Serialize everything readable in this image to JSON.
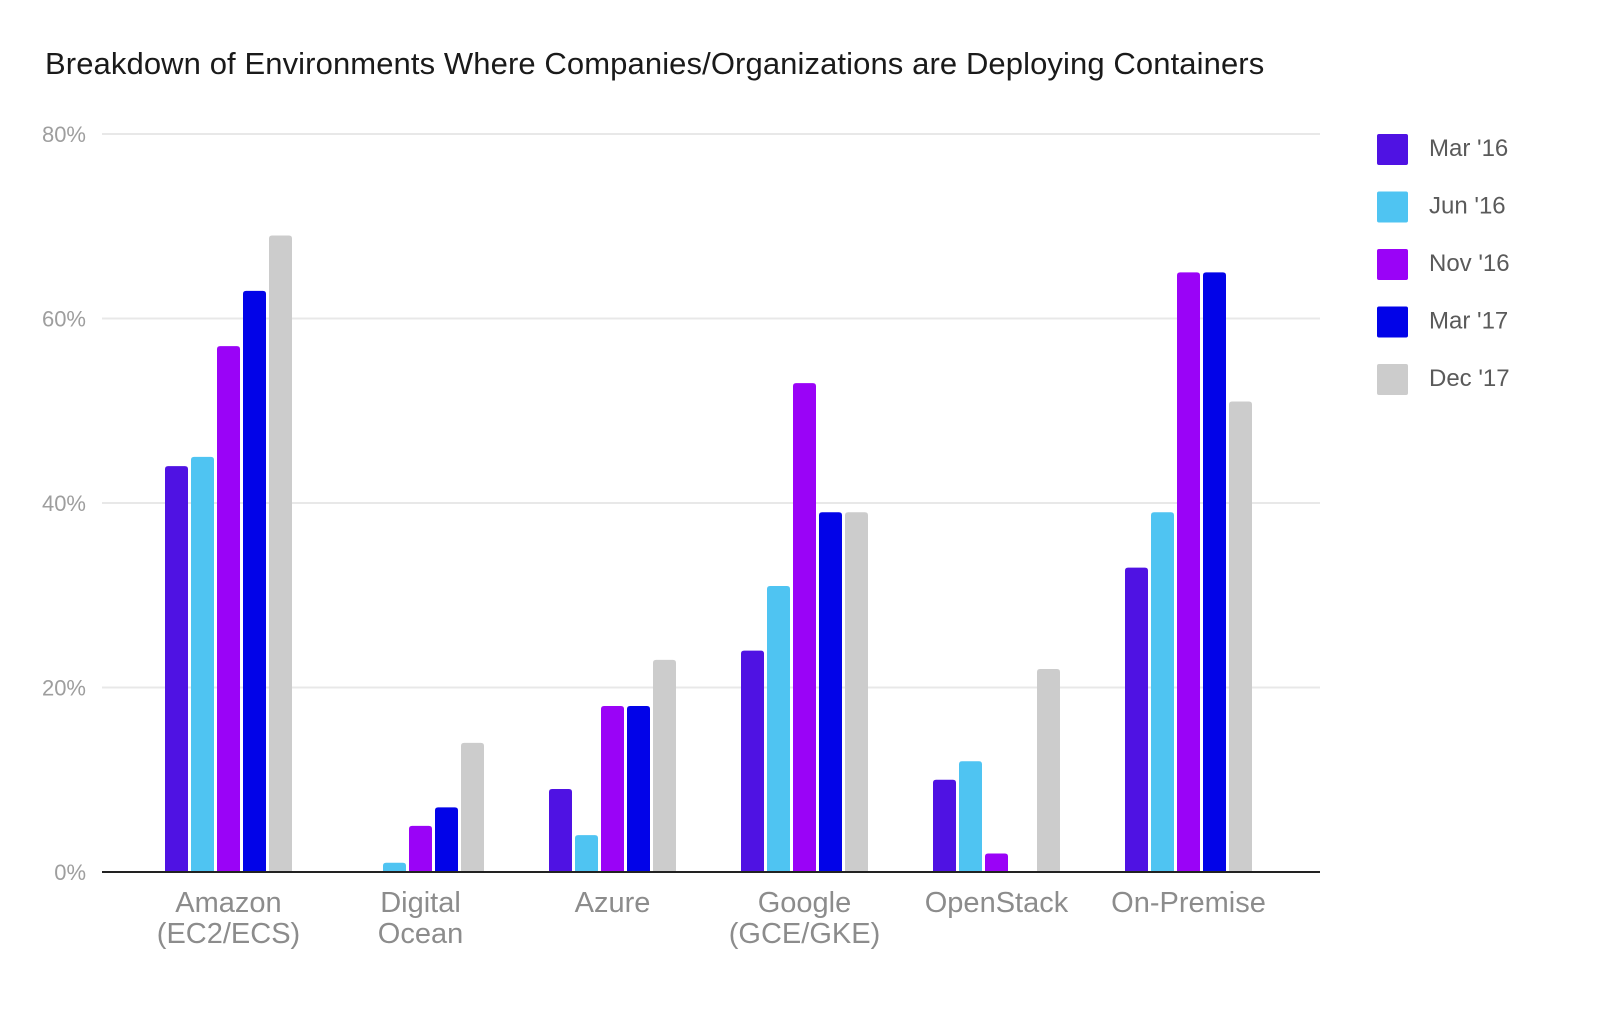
{
  "chart_data": {
    "type": "bar",
    "title": "Breakdown of Environments Where Companies/Organizations are Deploying Containers",
    "xlabel": "",
    "ylabel": "",
    "categories": [
      [
        "Amazon",
        "(EC2/ECS)"
      ],
      [
        "Digital",
        "Ocean"
      ],
      [
        "Azure"
      ],
      [
        "Google",
        "(GCE/GKE)"
      ],
      [
        "OpenStack"
      ],
      [
        "On-Premise"
      ]
    ],
    "series": [
      {
        "name": "Mar '16",
        "color": "#4f12e3",
        "values": [
          44,
          0,
          9,
          24,
          10,
          33
        ]
      },
      {
        "name": "Jun '16",
        "color": "#4fc4f2",
        "values": [
          45,
          1,
          4,
          31,
          12,
          39
        ]
      },
      {
        "name": "Nov '16",
        "color": "#9a03f7",
        "values": [
          57,
          5,
          18,
          53,
          2,
          65
        ]
      },
      {
        "name": "Mar '17",
        "color": "#0203e8",
        "values": [
          63,
          7,
          18,
          39,
          0,
          65
        ]
      },
      {
        "name": "Dec '17",
        "color": "#cccccc",
        "values": [
          69,
          14,
          23,
          39,
          22,
          51
        ]
      }
    ],
    "ylim": [
      0,
      80
    ],
    "yticks": [
      0,
      20,
      40,
      60,
      80
    ],
    "ytick_suffix": "%",
    "grid": true,
    "legend_position": "right"
  }
}
